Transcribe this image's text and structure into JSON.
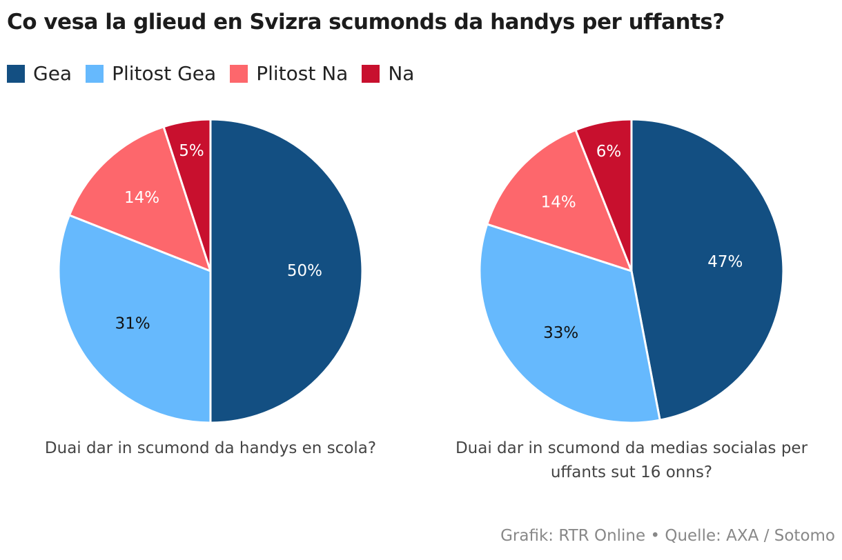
{
  "title": "Co vesa la glieud en Svizra scumonds da handys per uffants?",
  "legend": [
    {
      "label": "Gea",
      "color": "#134f82"
    },
    {
      "label": "Plitost Gea",
      "color": "#66b9fd"
    },
    {
      "label": "Plitost Na",
      "color": "#fd676c"
    },
    {
      "label": "Na",
      "color": "#c8102e"
    }
  ],
  "chart_data": [
    {
      "type": "pie",
      "subtitle": "Duai dar in scumond da handys en scola?",
      "categories": [
        "Gea",
        "Plitost Gea",
        "Plitost Na",
        "Na"
      ],
      "values": [
        50,
        31,
        14,
        5
      ],
      "labels": [
        "50%",
        "31%",
        "14%",
        "5%"
      ],
      "label_colors": [
        "#ffffff",
        "#111111",
        "#ffffff",
        "#ffffff"
      ]
    },
    {
      "type": "pie",
      "subtitle": "Duai dar in scumond da medias socialas per uffants sut 16 onns?",
      "categories": [
        "Gea",
        "Plitost Gea",
        "Plitost Na",
        "Na"
      ],
      "values": [
        47,
        33,
        14,
        6
      ],
      "labels": [
        "47%",
        "33%",
        "14%",
        "6%"
      ],
      "label_colors": [
        "#ffffff",
        "#111111",
        "#ffffff",
        "#ffffff"
      ]
    }
  ],
  "source": "Grafik: RTR Online • Quelle: AXA / Sotomo"
}
